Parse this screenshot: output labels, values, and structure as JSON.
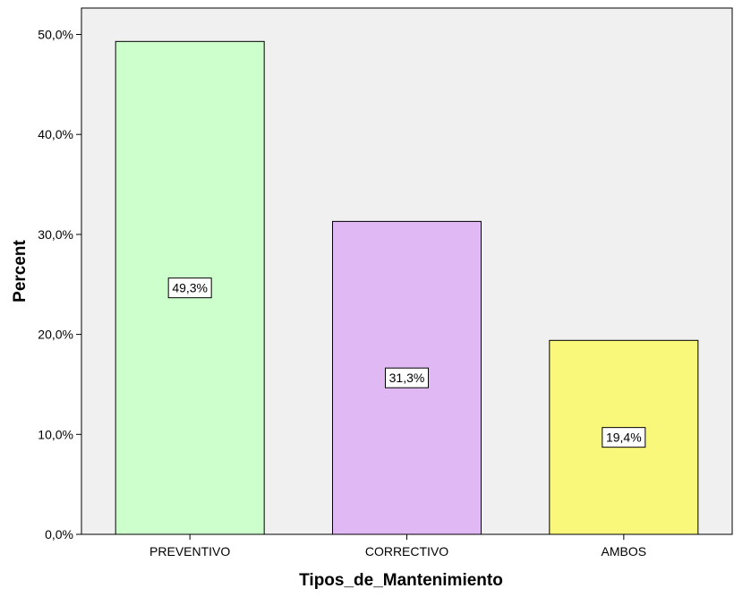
{
  "chart_data": {
    "type": "bar",
    "title": "",
    "xlabel": "Tipos_de_Mantenimiento",
    "ylabel": "Percent",
    "categories": [
      "PREVENTIVO",
      "CORRECTIVO",
      "AMBOS"
    ],
    "values": [
      49.3,
      31.3,
      19.4
    ],
    "data_labels": [
      "49,3%",
      "31,3%",
      "19,4%"
    ],
    "ylim": [
      0,
      52
    ],
    "yticks": [
      0,
      10,
      20,
      30,
      40,
      50
    ],
    "ytick_labels": [
      "0,0%",
      "10,0%",
      "20,0%",
      "30,0%",
      "40,0%",
      "50,0%"
    ],
    "bar_colors": [
      "#ccffcc",
      "#e0b8f4",
      "#faf87a"
    ],
    "plot_background": "#f0f0f0",
    "grid": false,
    "legend": "none"
  }
}
